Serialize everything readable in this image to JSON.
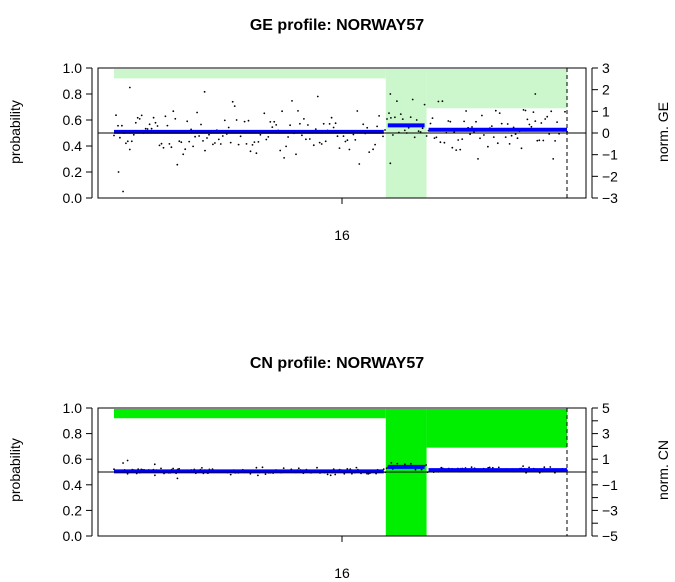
{
  "chart_data": [
    {
      "type": "scatter",
      "title": "GE profile: NORWAY57",
      "ylabel": "probability",
      "y2label": "norm. GE",
      "xtick_labels": [
        "16"
      ],
      "ylim": [
        0,
        1
      ],
      "yticks": [
        "0.0",
        "0.2",
        "0.4",
        "0.6",
        "0.8",
        "1.0"
      ],
      "y2lim": [
        -3,
        3
      ],
      "y2ticks": [
        "-3",
        "-2",
        "-1",
        "0",
        "1",
        "2",
        "3"
      ],
      "y2ticks_labeled": [
        "−3",
        "−2",
        "−1",
        "0",
        "1",
        "2",
        "3"
      ],
      "baseline": 0,
      "probability_regions": [
        {
          "from": 0.0,
          "to": 0.6,
          "probability": 0.92
        },
        {
          "from": 0.6,
          "to": 0.69,
          "probability": 0.0
        },
        {
          "from": 0.69,
          "to": 1.0,
          "probability": 0.69
        }
      ],
      "segments": [
        {
          "from": 0.0,
          "to": 0.6,
          "value": 0.05
        },
        {
          "from": 0.6,
          "to": 0.69,
          "value": 0.35
        },
        {
          "from": 0.69,
          "to": 1.0,
          "value": 0.15
        }
      ],
      "point_sd": 0.6,
      "outliers": [
        {
          "x": 0.02,
          "y": -2.7
        },
        {
          "x": 0.01,
          "y": -1.8
        },
        {
          "x": 0.035,
          "y": 2.1
        },
        {
          "x": 0.2,
          "y": 1.9
        },
        {
          "x": 0.61,
          "y": 1.8
        },
        {
          "x": 0.61,
          "y": -1.4
        },
        {
          "x": 0.93,
          "y": 1.8
        }
      ],
      "colors": {
        "region": "#ccf7cc",
        "segment": "#0000ff",
        "point": "#000000"
      }
    },
    {
      "type": "scatter",
      "title": "CN profile: NORWAY57",
      "ylabel": "probability",
      "y2label": "norm. CN",
      "xtick_labels": [
        "16"
      ],
      "ylim": [
        0,
        1
      ],
      "yticks": [
        "0.0",
        "0.2",
        "0.4",
        "0.6",
        "0.8",
        "1.0"
      ],
      "y2lim": [
        -5,
        5
      ],
      "y2ticks": [
        "-5",
        "-4",
        "-3",
        "-2",
        "-1",
        "0",
        "1",
        "2",
        "3",
        "4",
        "5"
      ],
      "y2ticks_labeled": [
        "−5",
        "−3",
        "−1",
        "1",
        "3",
        "5"
      ],
      "baseline": 0,
      "probability_regions": [
        {
          "from": 0.0,
          "to": 0.6,
          "probability": 0.92
        },
        {
          "from": 0.6,
          "to": 0.69,
          "probability": 0.0
        },
        {
          "from": 0.69,
          "to": 1.0,
          "probability": 0.69
        }
      ],
      "segments": [
        {
          "from": 0.0,
          "to": 0.6,
          "value": 0.05
        },
        {
          "from": 0.6,
          "to": 0.69,
          "value": 0.4
        },
        {
          "from": 0.69,
          "to": 1.0,
          "value": 0.15
        }
      ],
      "point_sd": 0.12,
      "outliers": [
        {
          "x": 0.02,
          "y": 0.7
        },
        {
          "x": 0.03,
          "y": 0.9
        },
        {
          "x": 0.09,
          "y": 0.6
        },
        {
          "x": 0.14,
          "y": -0.5
        }
      ],
      "colors": {
        "region": "#00ee00",
        "segment": "#0000ff",
        "point": "#000000"
      }
    }
  ]
}
